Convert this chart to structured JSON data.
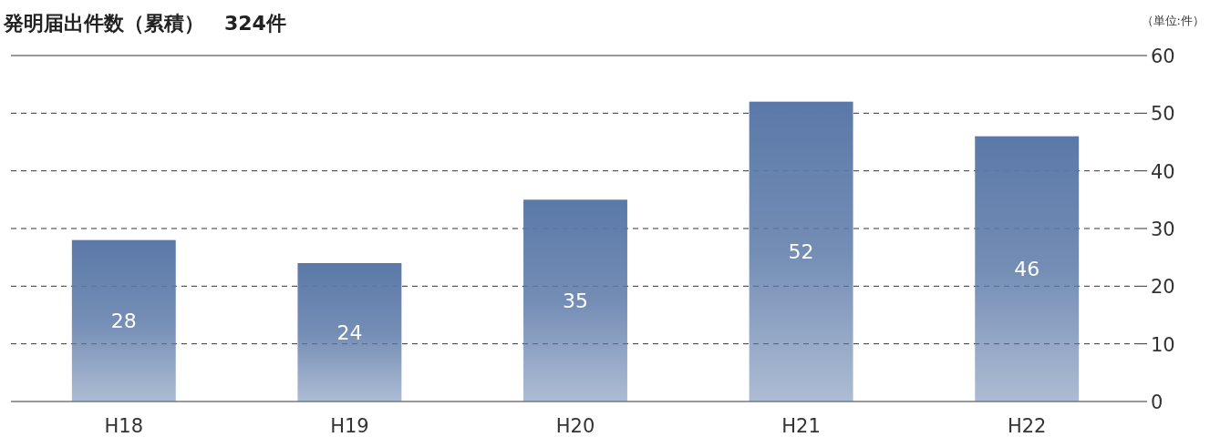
{
  "chart_data": {
    "type": "bar",
    "title": "発明届出件数（累積）　324件",
    "annotations": [
      "（単位:件）"
    ],
    "categories": [
      "H18",
      "H19",
      "H20",
      "H21",
      "H22"
    ],
    "values": [
      28,
      24,
      35,
      52,
      46
    ],
    "color": "#5b79a8",
    "ylim": [
      0,
      60
    ],
    "yticks": [
      0,
      10,
      20,
      30,
      40,
      50,
      60
    ],
    "grid": "y",
    "data_labels": true
  }
}
